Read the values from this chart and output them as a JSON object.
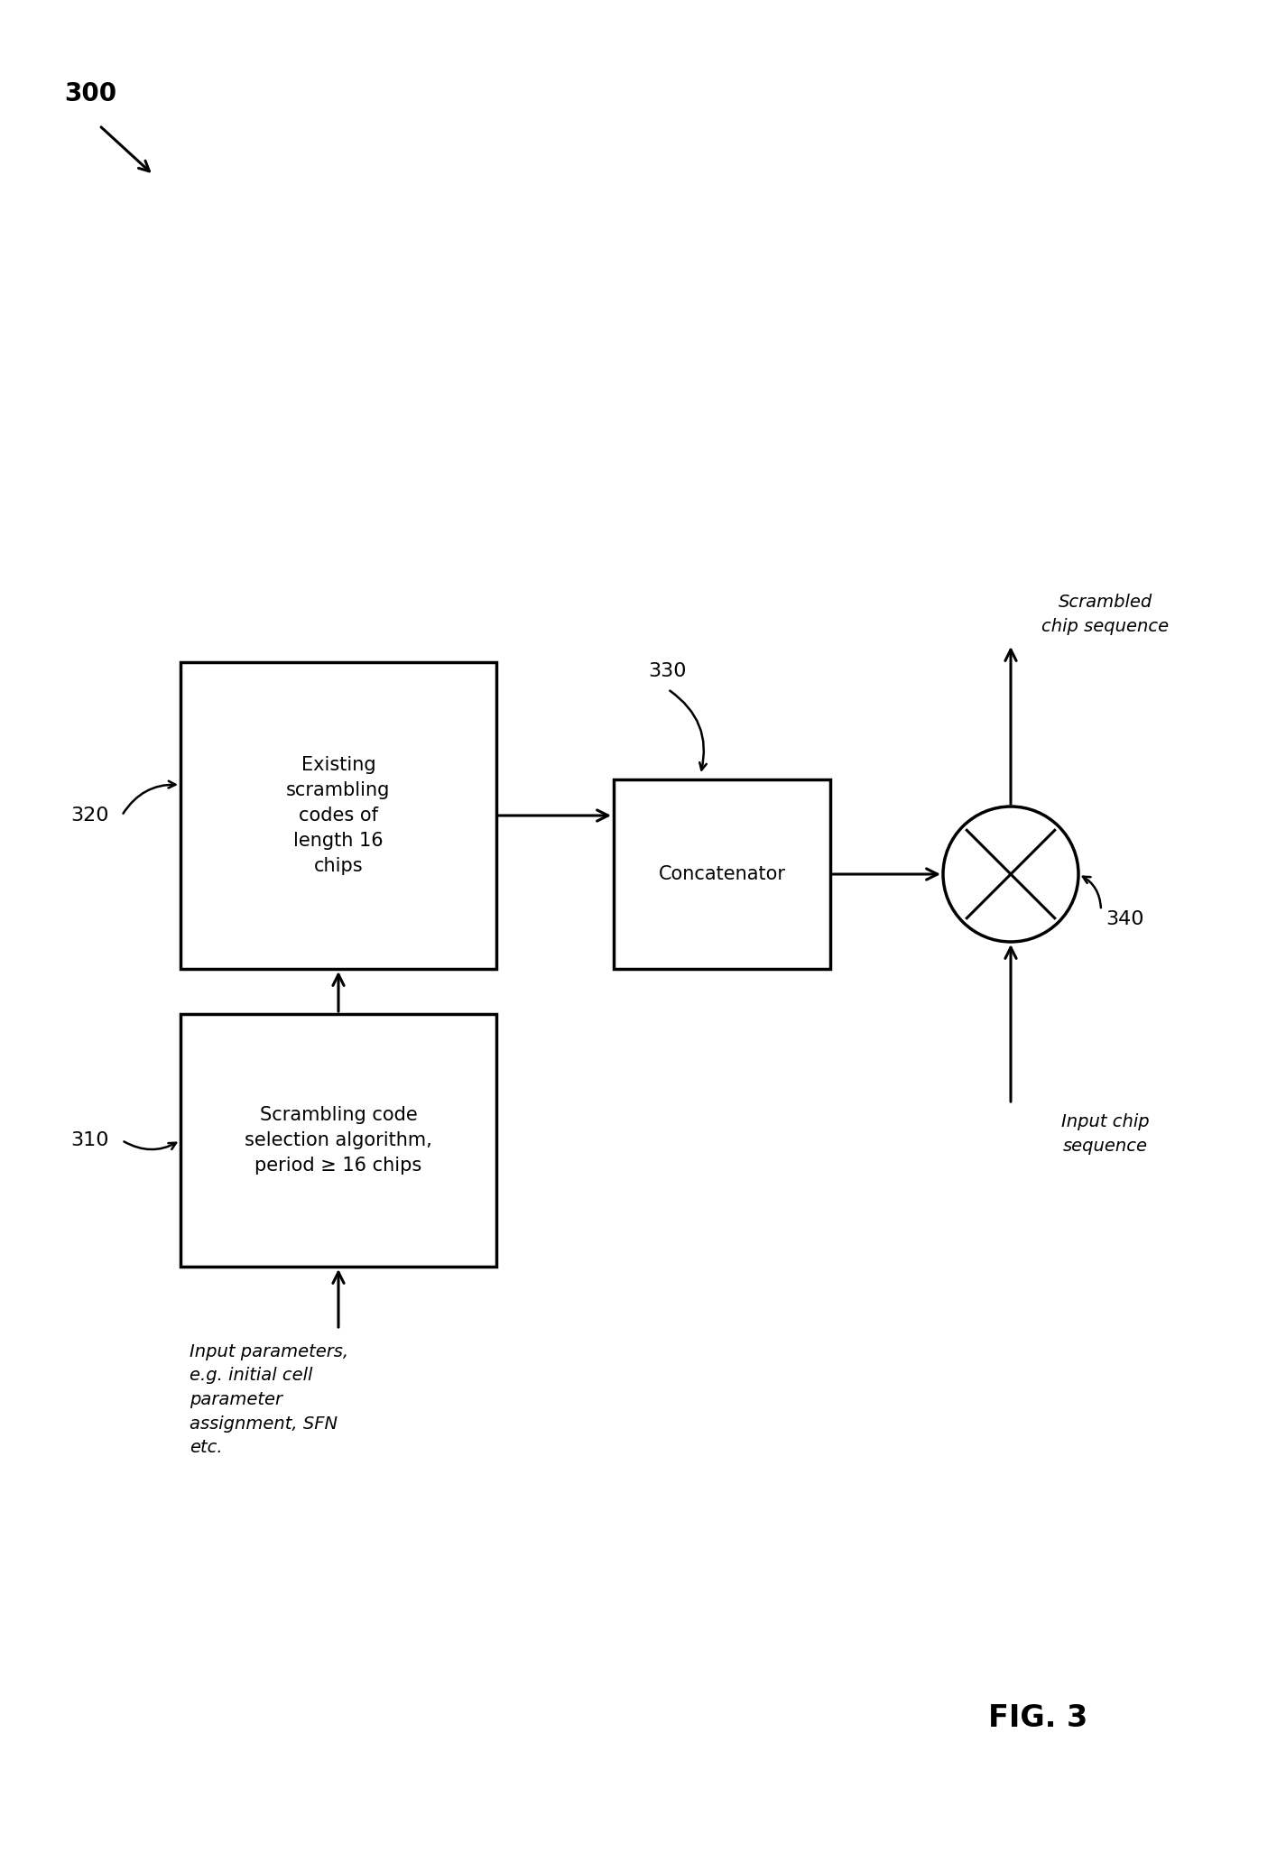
{
  "background_color": "#ffffff",
  "fig_width": 14.25,
  "fig_height": 20.54,
  "dpi": 100,
  "label_300": "300",
  "label_310": "310",
  "label_320": "320",
  "label_330": "330",
  "label_340": "340",
  "fig_label": "FIG. 3",
  "box320_text": "Existing\nscrambling\ncodes of\nlength 16\nchips",
  "box310_text": "Scrambling code\nselection algorithm,\nperiod ≥ 16 chips",
  "box330_text": "Concatenator",
  "text_input_params": "Input parameters,\ne.g. initial cell\nparameter\nassignment, SFN\netc.",
  "text_scrambled": "Scrambled\nchip sequence",
  "text_input_chip": "Input chip\nsequence"
}
